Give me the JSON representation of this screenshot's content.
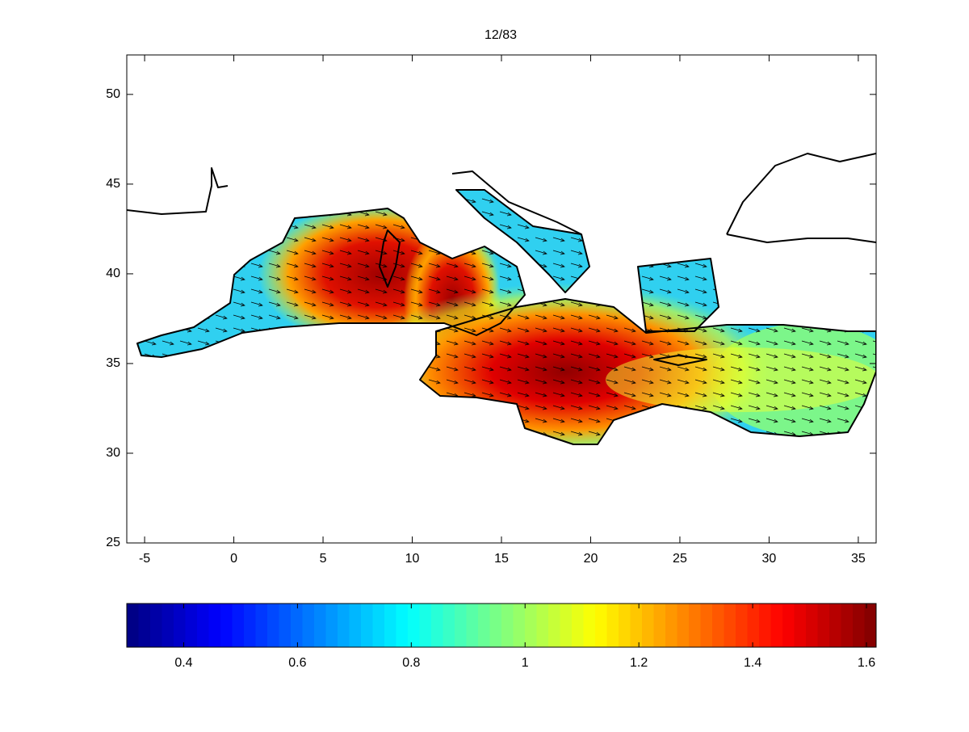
{
  "chart_data": {
    "type": "map",
    "title": "12/83",
    "xlim": [
      -6,
      36
    ],
    "xticks": [
      -5,
      0,
      5,
      10,
      15,
      20,
      25,
      30,
      35
    ],
    "ylim": [
      25,
      52.2
    ],
    "yticks": [
      25,
      30,
      35,
      40,
      45,
      50
    ],
    "colorbar": {
      "colormap": "jet",
      "clim": [
        0.3,
        1.617
      ],
      "ticks": [
        0.4,
        0.6,
        0.8,
        1,
        1.2,
        1.4,
        1.6
      ]
    }
  }
}
